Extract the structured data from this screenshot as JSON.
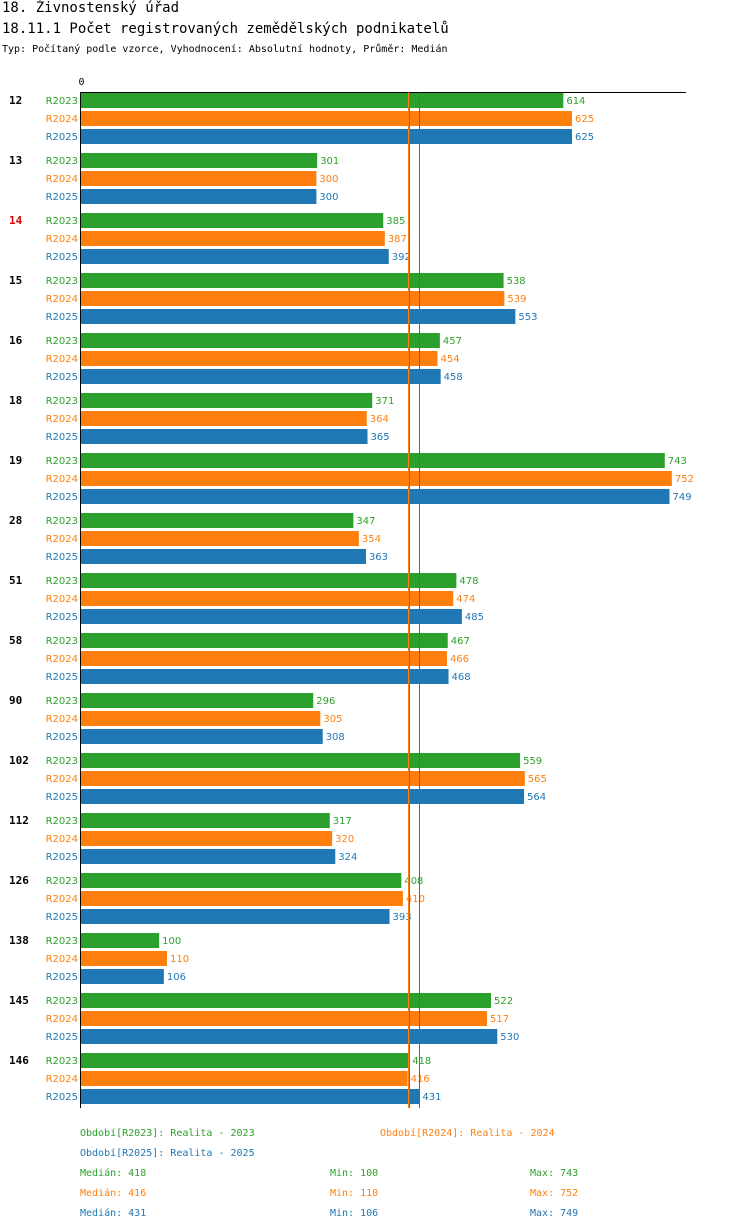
{
  "header": {
    "title": "18. Živnostenský úřad",
    "subtitle": "18.11.1 Počet registrovaných zemědělských podnikatelů",
    "meta": "Typ: Počítaný podle vzorce, Vyhodnocení: Absolutní hodnoty, Průměr: Medián"
  },
  "colors": {
    "R2023": "#2ca02c",
    "R2024": "#ff7f0e",
    "R2025": "#1f77b4",
    "highlight": "#dd0000"
  },
  "chart_data": {
    "type": "bar",
    "orientation": "horizontal",
    "axis_zero_label": "0",
    "xlim": [
      0,
      763
    ],
    "categories": [
      "12",
      "13",
      "14",
      "15",
      "16",
      "18",
      "19",
      "28",
      "51",
      "58",
      "90",
      "102",
      "112",
      "126",
      "138",
      "145",
      "146"
    ],
    "highlighted_category": "14",
    "series": [
      {
        "name": "R2023",
        "values": [
          614,
          301,
          385,
          538,
          457,
          371,
          743,
          347,
          478,
          467,
          296,
          559,
          317,
          408,
          100,
          522,
          418
        ]
      },
      {
        "name": "R2024",
        "values": [
          625,
          300,
          387,
          539,
          454,
          364,
          752,
          354,
          474,
          466,
          305,
          565,
          320,
          410,
          110,
          517,
          416
        ]
      },
      {
        "name": "R2025",
        "values": [
          625,
          300,
          392,
          553,
          458,
          365,
          749,
          363,
          485,
          468,
          308,
          564,
          324,
          393,
          106,
          530,
          431
        ]
      }
    ],
    "medians": {
      "R2023": 418,
      "R2024": 416,
      "R2025": 431
    }
  },
  "legend": {
    "r2023": "Období[R2023]: Realita - 2023",
    "r2024": "Období[R2024]: Realita - 2024",
    "r2025": "Období[R2025]: Realita - 2025",
    "stats": [
      {
        "median": "Medián: 418",
        "min": "Min: 100",
        "max": "Max: 743"
      },
      {
        "median": "Medián: 416",
        "min": "Min: 110",
        "max": "Max: 752"
      },
      {
        "median": "Medián: 431",
        "min": "Min: 106",
        "max": "Max: 749"
      }
    ]
  }
}
